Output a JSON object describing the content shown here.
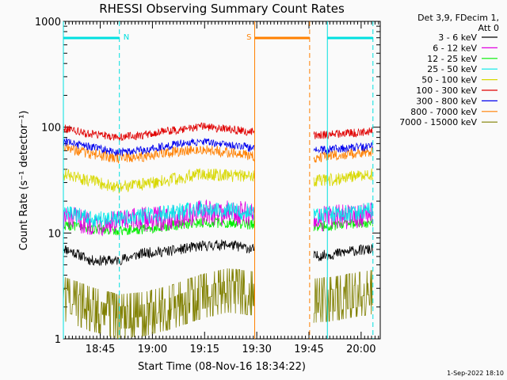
{
  "chart_data": {
    "type": "line",
    "title": "RHESSI Observing Summary Count Rates",
    "xlabel": "Start Time (08-Nov-16 18:34:22)",
    "ylabel": "Count Rate (s⁻¹ detector⁻¹)",
    "yscale": "log",
    "ylim": [
      1,
      1000
    ],
    "xlim_minutes_after_1830": [
      4.4,
      95.5
    ],
    "x_ticks": [
      {
        "label": "18:45",
        "minute": 15
      },
      {
        "label": "19:00",
        "minute": 30
      },
      {
        "label": "19:15",
        "minute": 45
      },
      {
        "label": "19:30",
        "minute": 60
      },
      {
        "label": "19:45",
        "minute": 75
      },
      {
        "label": "20:00",
        "minute": 90
      }
    ],
    "y_ticks": [
      {
        "label": "1",
        "value": 1
      },
      {
        "label": "10",
        "value": 10
      },
      {
        "label": "100",
        "value": 100
      },
      {
        "label": "1000",
        "value": 1000
      }
    ],
    "legend": {
      "position": "top-right",
      "header": [
        "Det 3,9, FDecim 1,",
        "Att 0"
      ]
    },
    "series": [
      {
        "name": "3 - 6 keV",
        "color": "#000000",
        "before": [
          7.2,
          5.5,
          5.5,
          6.5,
          6.8,
          7.5,
          7.8,
          7.0
        ],
        "after": [
          6.0,
          6.3,
          6.8,
          7.0
        ]
      },
      {
        "name": "6 - 12 keV",
        "color": "#e000e0",
        "before": [
          14.0,
          12.5,
          12.5,
          13.5,
          14.0,
          15.5,
          15.5,
          15.0
        ],
        "after": [
          13.5,
          14.0,
          14.5,
          15.0
        ]
      },
      {
        "name": "12 - 25 keV",
        "color": "#00ee00",
        "before": [
          12.0,
          11.0,
          10.5,
          11.0,
          11.8,
          12.5,
          12.5,
          12.0
        ],
        "after": [
          11.5,
          11.8,
          12.2,
          12.5
        ]
      },
      {
        "name": "25 - 50 keV",
        "color": "#00e8e8",
        "before": [
          15.5,
          13.5,
          13.5,
          14.5,
          15.5,
          17.0,
          16.5,
          15.5
        ],
        "after": [
          14.5,
          15.0,
          15.5,
          16.5
        ]
      },
      {
        "name": "50 - 100 keV",
        "color": "#d8d800",
        "before": [
          36,
          31,
          27,
          29,
          32,
          36,
          35,
          34
        ],
        "after": [
          31,
          32,
          34,
          36
        ]
      },
      {
        "name": "100 - 300 keV",
        "color": "#e00000",
        "before": [
          98,
          86,
          80,
          85,
          93,
          102,
          96,
          90
        ],
        "after": [
          84,
          86,
          88,
          92
        ]
      },
      {
        "name": "300 - 800 keV",
        "color": "#0000ee",
        "before": [
          73,
          65,
          58,
          61,
          68,
          74,
          69,
          63
        ],
        "after": [
          60,
          62,
          64,
          66
        ]
      },
      {
        "name": "800 - 7000 keV",
        "color": "#ff8000",
        "before": [
          65,
          56,
          51,
          53,
          58,
          62,
          58,
          53
        ],
        "after": [
          52,
          54,
          56,
          58
        ]
      },
      {
        "name": "7000 - 15000 keV",
        "color": "#808000",
        "before": [
          2.5,
          2.0,
          1.7,
          1.8,
          2.1,
          2.6,
          3.0,
          2.8
        ],
        "after": [
          2.4,
          2.5,
          2.7,
          2.9
        ]
      }
    ],
    "segment_minutes": {
      "before": [
        4.4,
        59.4
      ],
      "after": [
        76.4,
        93.4
      ]
    },
    "annotations": [
      {
        "label": "N",
        "color": "#00e0e0",
        "start_minute": 4.4,
        "end_minute": 20.5
      },
      {
        "label": "S",
        "color": "#ff8000",
        "start_minute": 59.4,
        "end_minute": 75.2
      },
      {
        "label": "",
        "color": "#00e0e0",
        "start_minute": 80.3,
        "end_minute": 93.4
      }
    ],
    "footer_date": "1-Sep-2022 18:10"
  }
}
